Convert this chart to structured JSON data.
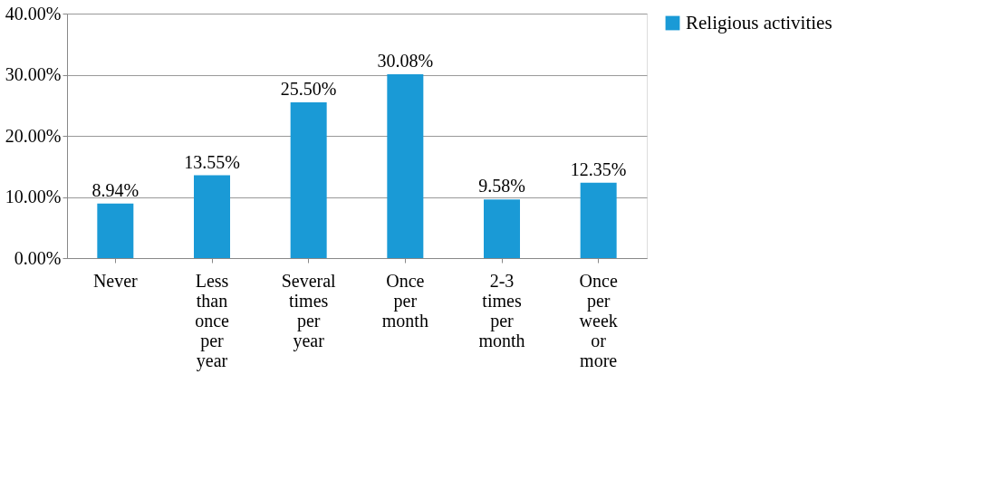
{
  "chart_data": {
    "type": "bar",
    "categories": [
      "Never",
      "Less than once per year",
      "Several times per year",
      "Once per month",
      "2-3 times per month",
      "Once per week or more"
    ],
    "series": [
      {
        "name": "Religious activities",
        "color": "#1a9ad6",
        "values": [
          8.94,
          13.55,
          25.5,
          30.08,
          9.58,
          12.35
        ],
        "value_labels": [
          "8.94%",
          "13.55%",
          "25.50%",
          "30.08%",
          "9.58%",
          "12.35%"
        ]
      }
    ],
    "ylim": [
      0,
      40
    ],
    "yticks": [
      {
        "value": 0,
        "label": "0.00%"
      },
      {
        "value": 10,
        "label": "10.00%"
      },
      {
        "value": 20,
        "label": "20.00%"
      },
      {
        "value": 30,
        "label": "30.00%"
      },
      {
        "value": 40,
        "label": "40.00%"
      }
    ],
    "grid": "y",
    "legend": "right"
  }
}
